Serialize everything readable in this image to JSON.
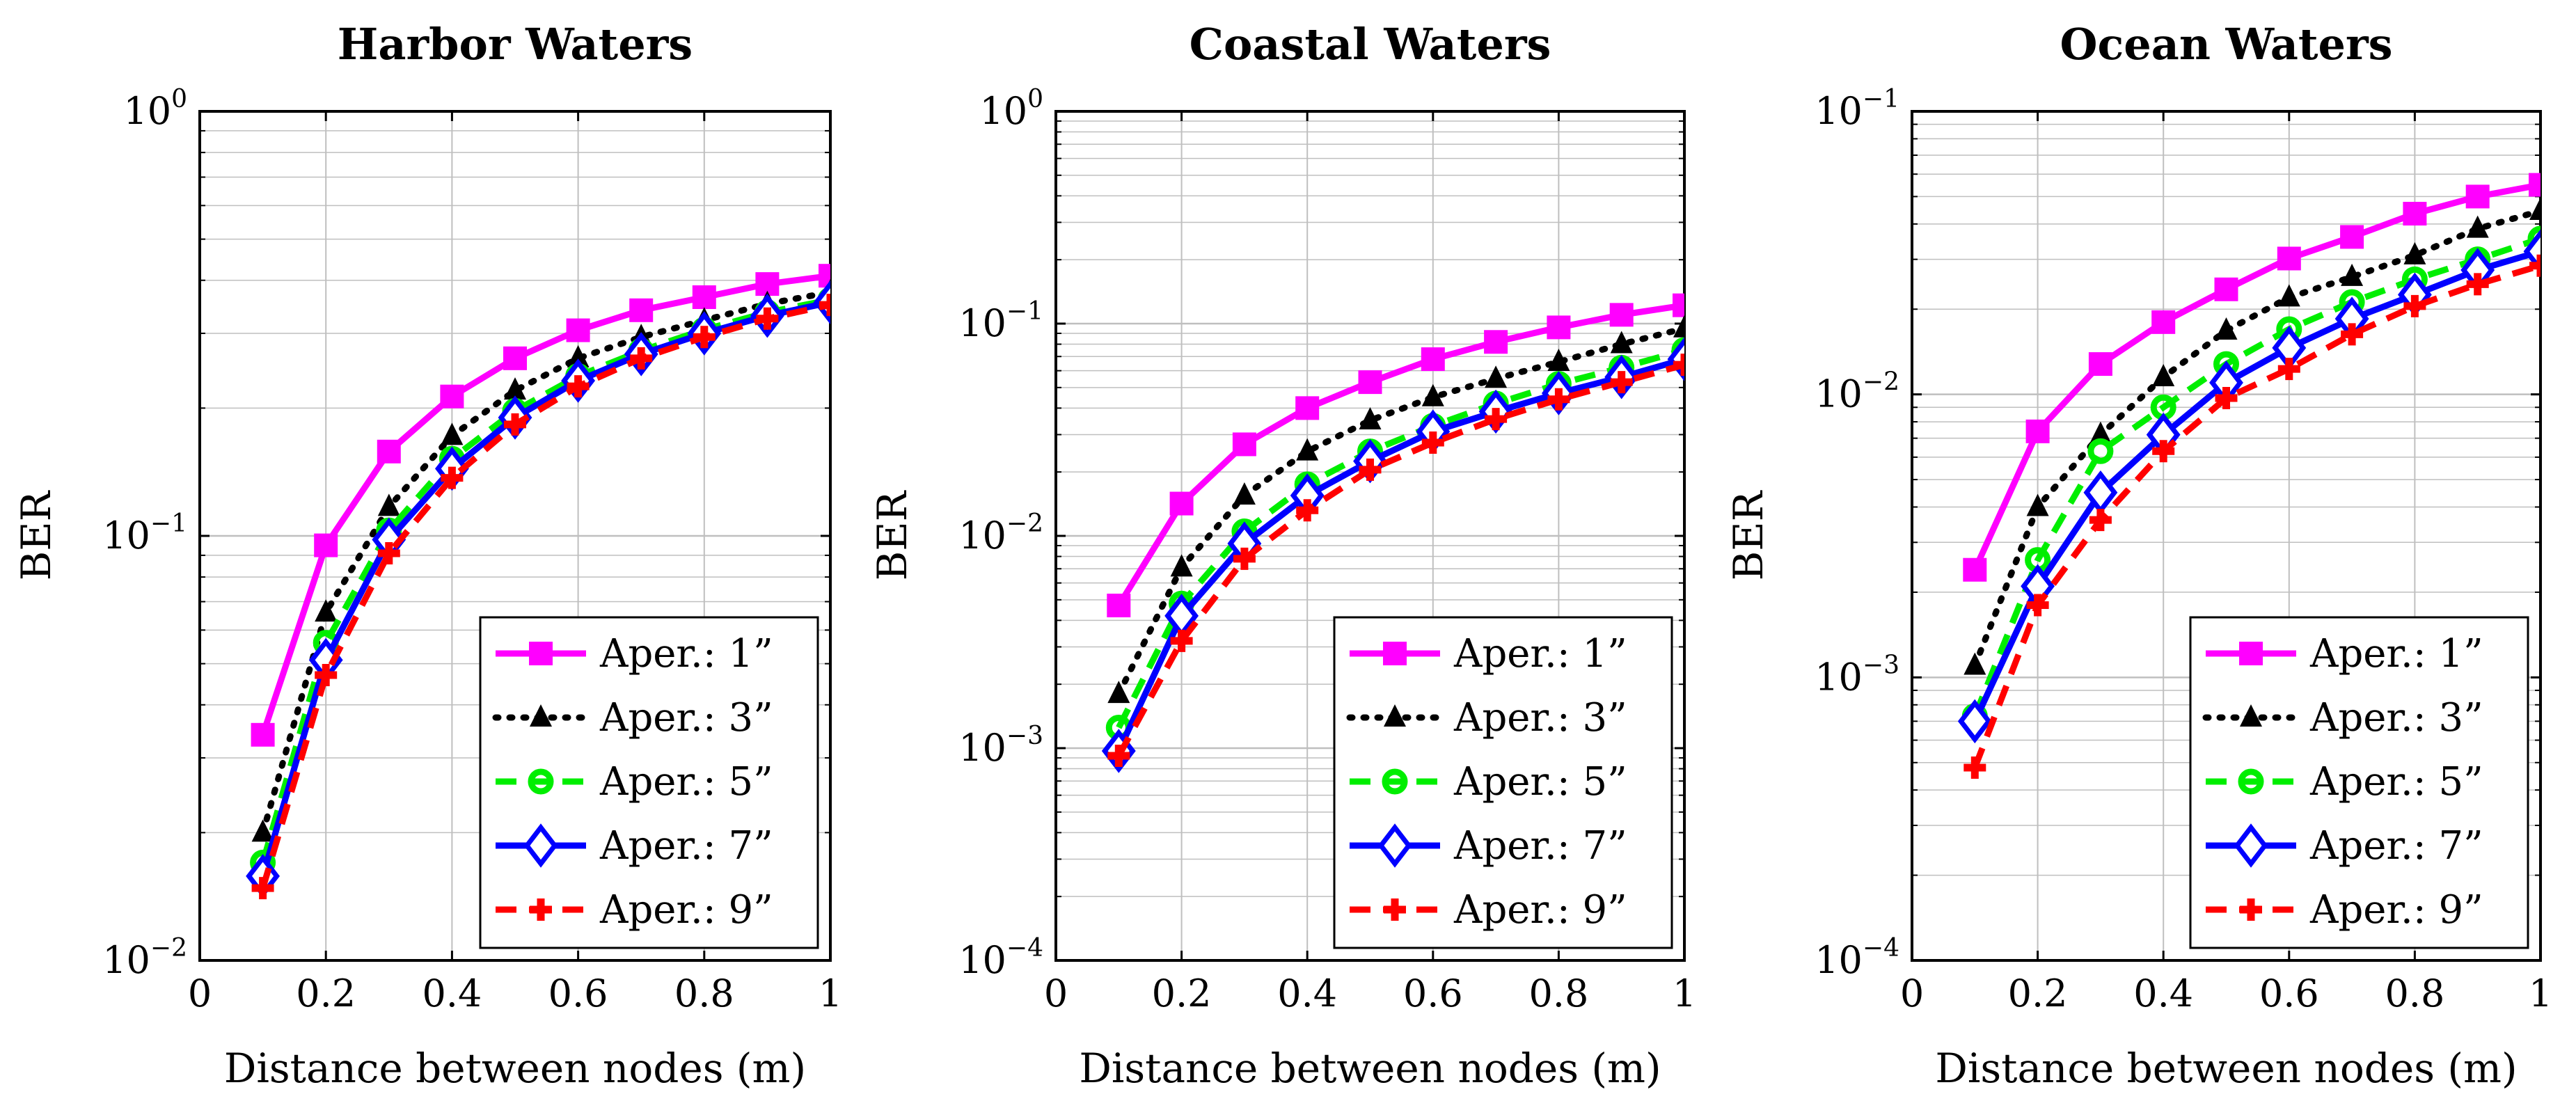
{
  "chart_data": [
    {
      "type": "line",
      "title": "Harbor Waters",
      "xlabel": "Distance between nodes (m)",
      "ylabel": "BER",
      "xlim": [
        0,
        1
      ],
      "ylim": [
        0.01,
        1
      ],
      "yscale": "log",
      "xticks": [
        "0",
        "0.2",
        "0.4",
        "0.6",
        "0.8",
        "1"
      ],
      "yticks": [
        {
          "base": "10",
          "exp": "−2",
          "value": 0.01
        },
        {
          "base": "10",
          "exp": "−1",
          "value": 0.1
        },
        {
          "base": "10",
          "exp": "0",
          "value": 1
        }
      ],
      "grid": true,
      "legend_position": "bottom-right",
      "x": [
        0.1,
        0.2,
        0.3,
        0.4,
        0.5,
        0.6,
        0.7,
        0.8,
        0.9,
        1.0
      ],
      "series": [
        {
          "name": "Aper.: 1”",
          "color": "#ff00ff",
          "marker": "square",
          "dash": "solid",
          "values": [
            0.034,
            0.095,
            0.158,
            0.213,
            0.262,
            0.305,
            0.34,
            0.365,
            0.392,
            0.41
          ]
        },
        {
          "name": "Aper.: 3”",
          "color": "#000000",
          "marker": "triangle",
          "dash": "dotted",
          "values": [
            0.02,
            0.066,
            0.117,
            0.172,
            0.22,
            0.262,
            0.294,
            0.322,
            0.352,
            0.375
          ]
        },
        {
          "name": "Aper.: 5”",
          "color": "#00ee00",
          "marker": "circle",
          "dash": "dashed",
          "values": [
            0.017,
            0.056,
            0.103,
            0.152,
            0.197,
            0.238,
            0.273,
            0.306,
            0.336,
            0.36
          ]
        },
        {
          "name": "Aper.: 7”",
          "color": "#0000ff",
          "marker": "diamond",
          "dash": "solid",
          "values": [
            0.0158,
            0.051,
            0.098,
            0.144,
            0.19,
            0.232,
            0.268,
            0.3,
            0.33,
            0.355
          ]
        },
        {
          "name": "Aper.: 9”",
          "color": "#ff0000",
          "marker": "plus",
          "dash": "dashed",
          "values": [
            0.0148,
            0.047,
            0.091,
            0.137,
            0.183,
            0.225,
            0.262,
            0.294,
            0.325,
            0.35
          ]
        }
      ]
    },
    {
      "type": "line",
      "title": "Coastal Waters",
      "xlabel": "Distance between nodes (m)",
      "ylabel": "BER",
      "xlim": [
        0,
        1
      ],
      "ylim": [
        0.0001,
        1
      ],
      "yscale": "log",
      "xticks": [
        "0",
        "0.2",
        "0.4",
        "0.6",
        "0.8",
        "1"
      ],
      "yticks": [
        {
          "base": "10",
          "exp": "−4",
          "value": 0.0001
        },
        {
          "base": "10",
          "exp": "−3",
          "value": 0.001
        },
        {
          "base": "10",
          "exp": "−2",
          "value": 0.01
        },
        {
          "base": "10",
          "exp": "−1",
          "value": 0.1
        },
        {
          "base": "10",
          "exp": "0",
          "value": 1
        }
      ],
      "grid": true,
      "legend_position": "bottom-right",
      "x": [
        0.1,
        0.2,
        0.3,
        0.4,
        0.5,
        0.6,
        0.7,
        0.8,
        0.9,
        1.0
      ],
      "series": [
        {
          "name": "Aper.: 1”",
          "color": "#ff00ff",
          "marker": "square",
          "dash": "solid",
          "values": [
            0.0047,
            0.0142,
            0.027,
            0.04,
            0.053,
            0.068,
            0.082,
            0.096,
            0.11,
            0.122
          ]
        },
        {
          "name": "Aper.: 3”",
          "color": "#000000",
          "marker": "triangle",
          "dash": "dotted",
          "values": [
            0.0018,
            0.0071,
            0.0155,
            0.025,
            0.035,
            0.045,
            0.055,
            0.066,
            0.08,
            0.095
          ]
        },
        {
          "name": "Aper.: 5”",
          "color": "#00ee00",
          "marker": "circle",
          "dash": "dashed",
          "values": [
            0.00125,
            0.0048,
            0.0105,
            0.0175,
            0.025,
            0.033,
            0.042,
            0.052,
            0.062,
            0.075
          ]
        },
        {
          "name": "Aper.: 7”",
          "color": "#0000ff",
          "marker": "diamond",
          "dash": "solid",
          "values": [
            0.00097,
            0.0042,
            0.0092,
            0.0155,
            0.0225,
            0.031,
            0.0385,
            0.047,
            0.056,
            0.068
          ]
        },
        {
          "name": "Aper.: 9”",
          "color": "#ff0000",
          "marker": "plus",
          "dash": "dashed",
          "values": [
            0.00092,
            0.0032,
            0.0078,
            0.0132,
            0.0205,
            0.0275,
            0.0355,
            0.044,
            0.053,
            0.064
          ]
        }
      ]
    },
    {
      "type": "line",
      "title": "Ocean Waters",
      "xlabel": "Distance between nodes (m)",
      "ylabel": "BER",
      "xlim": [
        0,
        1
      ],
      "ylim": [
        0.0001,
        0.1
      ],
      "yscale": "log",
      "xticks": [
        "0",
        "0.2",
        "0.4",
        "0.6",
        "0.8",
        "1"
      ],
      "yticks": [
        {
          "base": "10",
          "exp": "−4",
          "value": 0.0001
        },
        {
          "base": "10",
          "exp": "−3",
          "value": 0.001
        },
        {
          "base": "10",
          "exp": "−2",
          "value": 0.01
        },
        {
          "base": "10",
          "exp": "−1",
          "value": 0.1
        }
      ],
      "grid": true,
      "legend_position": "bottom-right",
      "x": [
        0.1,
        0.2,
        0.3,
        0.4,
        0.5,
        0.6,
        0.7,
        0.8,
        0.9,
        1.0
      ],
      "series": [
        {
          "name": "Aper.: 1”",
          "color": "#ff00ff",
          "marker": "square",
          "dash": "solid",
          "values": [
            0.0024,
            0.0074,
            0.0128,
            0.018,
            0.0235,
            0.0302,
            0.036,
            0.0435,
            0.05,
            0.055
          ]
        },
        {
          "name": "Aper.: 3”",
          "color": "#000000",
          "marker": "triangle",
          "dash": "dotted",
          "values": [
            0.0011,
            0.004,
            0.0072,
            0.0115,
            0.0168,
            0.022,
            0.026,
            0.031,
            0.0385,
            0.0445
          ]
        },
        {
          "name": "Aper.: 5”",
          "color": "#00ee00",
          "marker": "circle",
          "dash": "dashed",
          "values": [
            0.00073,
            0.0026,
            0.0063,
            0.009,
            0.0128,
            0.017,
            0.0212,
            0.0255,
            0.03,
            0.0355
          ]
        },
        {
          "name": "Aper.: 7”",
          "color": "#0000ff",
          "marker": "diamond",
          "dash": "solid",
          "values": [
            0.0007,
            0.0021,
            0.0045,
            0.0072,
            0.011,
            0.0146,
            0.0185,
            0.0225,
            0.0275,
            0.032
          ]
        },
        {
          "name": "Aper.: 9”",
          "color": "#ff0000",
          "marker": "plus",
          "dash": "dashed",
          "values": [
            0.00048,
            0.0018,
            0.0036,
            0.0063,
            0.0097,
            0.0123,
            0.0163,
            0.0205,
            0.0245,
            0.0285
          ]
        }
      ]
    }
  ]
}
